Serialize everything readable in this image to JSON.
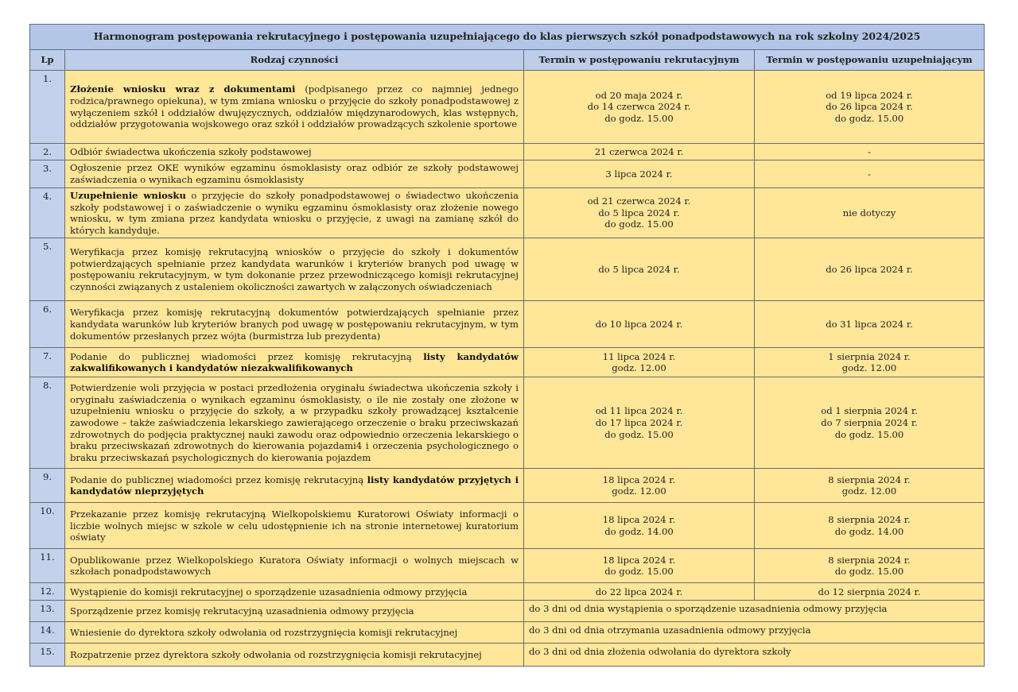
{
  "title": "Harmonogram postępowania rekrutacyjnego i postępowania uzupełniającego do klas pierwszych szkół ponadpodstawowych na rok szkolny 2024/2025",
  "headers": {
    "lp": "Lp",
    "activity": "Rodzaj czynności",
    "term1": "Termin w postępowaniu rekrutacyjnym",
    "term2": "Termin w postępowaniu uzupełniającym"
  },
  "colors": {
    "header_bg": "#b4c6e7",
    "lp_bg": "#c3d1ec",
    "cell_bg": "#ffe699"
  },
  "rows": [
    {
      "lp": "1.",
      "activity": [
        {
          "t": "Złożenie wniosku wraz z dokumentami",
          "b": true
        },
        {
          "t": " (podpisanego przez co najmniej jednego rodzica/prawnego opiekuna), w tym zmiana wniosku o przyjęcie do szkoły ponadpodstawowej z wyłączeniem szkół i oddziałów dwujęzycznych, oddziałów międzynarodowych, klas wstępnych, oddziałów przygotowania wojskowego oraz szkół i oddziałów prowadzących szkolenie sportowe"
        }
      ],
      "term1": [
        "od 20 maja 2024 r.",
        "do 14 czerwca 2024 r.",
        "do godz. 15.00"
      ],
      "term2": [
        "od 19 lipca 2024 r.",
        "do 26 lipca 2024 r.",
        "do godz. 15.00"
      ]
    },
    {
      "lp": "2.",
      "activity": [
        {
          "t": "Odbiór świadectwa ukończenia szkoły podstawowej"
        }
      ],
      "term1": [
        "21 czerwca 2024 r."
      ],
      "term2": [
        "-"
      ]
    },
    {
      "lp": "3.",
      "activity": [
        {
          "t": "Ogłoszenie przez OKE wyników egzaminu ósmoklasisty oraz odbiór ze szkoły podstawowej zaświadczenia o wynikach egzaminu ósmoklasisty"
        }
      ],
      "term1": [
        "3 lipca 2024 r."
      ],
      "term2": [
        "-"
      ]
    },
    {
      "lp": "4.",
      "activity": [
        {
          "t": "Uzupełnienie wniosku",
          "b": true
        },
        {
          "t": " o przyjęcie do szkoły ponadpodstawowej o świadectwo ukończenia szkoły podstawowej i o zaświadczenie o wyniku egzaminu ósmoklasisty oraz złożenie nowego wniosku, w tym zmiana przez kandydata wniosku o przyjęcie, z uwagi na zamianę szkół do których kandyduje."
        }
      ],
      "term1": [
        "od 21 czerwca 2024 r.",
        "do 5 lipca 2024 r.",
        "do godz. 15.00"
      ],
      "term2": [
        "nie dotyczy"
      ]
    },
    {
      "lp": "5.",
      "activity": [
        {
          "t": "Weryfikacja przez komisję rekrutacyjną wniosków o przyjęcie do szkoły i dokumentów potwierdzających spełnianie przez kandydata warunków i kryteriów branych pod uwagę w postępowaniu rekrutacyjnym, w tym dokonanie przez przewodniczącego komisji rekrutacyjnej czynności związanych z ustaleniem okoliczności zawartych w załączonych oświadczeniach"
        }
      ],
      "term1": [
        "do 5 lipca 2024 r."
      ],
      "term2": [
        "do 26 lipca 2024 r."
      ]
    },
    {
      "lp": "6.",
      "activity": [
        {
          "t": "Weryfikacja przez komisję rekrutacyjną dokumentów potwierdzających spełnianie przez kandydata warunków lub kryteriów branych pod uwagę w postępowaniu rekrutacyjnym, w tym dokumentów przesłanych przez wójta (burmistrza lub prezydenta)"
        }
      ],
      "term1": [
        "do 10 lipca 2024 r."
      ],
      "term2": [
        "do 31 lipca 2024 r."
      ]
    },
    {
      "lp": "7.",
      "activity": [
        {
          "t": "Podanie do publicznej wiadomości przez komisję rekrutacyjną "
        },
        {
          "t": "listy kandydatów zakwalifikowanych i kandydatów niezakwalifikowanych",
          "b": true
        }
      ],
      "term1": [
        "11 lipca 2024 r.",
        "godz. 12.00"
      ],
      "term2": [
        "1 sierpnia 2024 r.",
        "godz. 12.00"
      ]
    },
    {
      "lp": "8.",
      "activity": [
        {
          "t": "Potwierdzenie woli przyjęcia w postaci przedłożenia oryginału świadectwa ukończenia szkoły i oryginału zaświadczenia o wynikach egzaminu ósmoklasisty, o ile nie zostały one złożone w uzupełnieniu wniosku o przyjęcie do szkoły, a w przypadku szkoły prowadzącej kształcenie zawodowe – także zaświadczenia lekarskiego zawierającego orzeczenie o braku przeciwskazań zdrowotnych do podjęcia praktycznej nauki zawodu oraz odpowiednio orzeczenia lekarskiego o braku przeciwskazań zdrowotnych do kierowania pojazdami4 i orzeczenia psychologicznego o braku przeciwskazań psychologicznych do kierowania pojazdem"
        }
      ],
      "term1": [
        "od 11 lipca 2024 r.",
        "do 17 lipca 2024 r.",
        "do godz. 15.00"
      ],
      "term2": [
        "od 1 sierpnia 2024 r.",
        "do 7 sierpnia 2024 r.",
        "do godz. 15.00"
      ]
    },
    {
      "lp": "9.",
      "activity": [
        {
          "t": "Podanie do publicznej wiadomości przez komisję rekrutacyjną "
        },
        {
          "t": "listy kandydatów przyjętych i kandydatów nieprzyjętych",
          "b": true
        }
      ],
      "term1": [
        "18 lipca 2024 r.",
        "godz. 12.00"
      ],
      "term2": [
        "8 sierpnia 2024 r.",
        "godz. 12.00"
      ]
    },
    {
      "lp": "10.",
      "activity": [
        {
          "t": "Przekazanie przez komisję rekrutacyjną Wielkopolskiemu Kuratorowi Oświaty informacji o liczbie wolnych miejsc w szkole w celu udostępnienie ich na stronie internetowej kuratorium oświaty"
        }
      ],
      "term1": [
        "18 lipca 2024 r.",
        "do godz. 14.00"
      ],
      "term2": [
        "8 sierpnia 2024 r.",
        "do godz. 14.00"
      ]
    },
    {
      "lp": "11.",
      "activity": [
        {
          "t": "Opublikowanie przez Wielkopolskiego Kuratora Oświaty informacji o wolnych miejscach w szkołach ponadpodstawowych"
        }
      ],
      "term1": [
        "18 lipca 2024 r.",
        "do godz. 15.00"
      ],
      "term2": [
        "8 sierpnia 2024 r.",
        "do godz. 15.00"
      ]
    },
    {
      "lp": "12.",
      "activity": [
        {
          "t": "Wystąpienie do komisji rekrutacyjnej o sporządzenie uzasadnienia odmowy przyjęcia"
        }
      ],
      "term1": [
        "do 22 lipca 2024 r."
      ],
      "term2": [
        "do 12 sierpnia 2024 r."
      ]
    },
    {
      "lp": "13.",
      "activity": [
        {
          "t": "Sporządzenie przez komisję rekrutacyjną uzasadnienia odmowy przyjęcia"
        }
      ],
      "merged": "do 3 dni od dnia wystąpienia o sporządzenie uzasadnienia odmowy przyjęcia"
    },
    {
      "lp": "14.",
      "activity": [
        {
          "t": "Wniesienie do dyrektora szkoły odwołania od rozstrzygnięcia komisji rekrutacyjnej"
        }
      ],
      "merged": "do 3 dni od dnia otrzymania uzasadnienia odmowy przyjęcia"
    },
    {
      "lp": "15.",
      "activity": [
        {
          "t": "Rozpatrzenie przez dyrektora szkoły odwołania od rozstrzygnięcia komisji rekrutacyjnej"
        }
      ],
      "merged": "do 3 dni od dnia złożenia odwołania do dyrektora szkoły"
    }
  ]
}
